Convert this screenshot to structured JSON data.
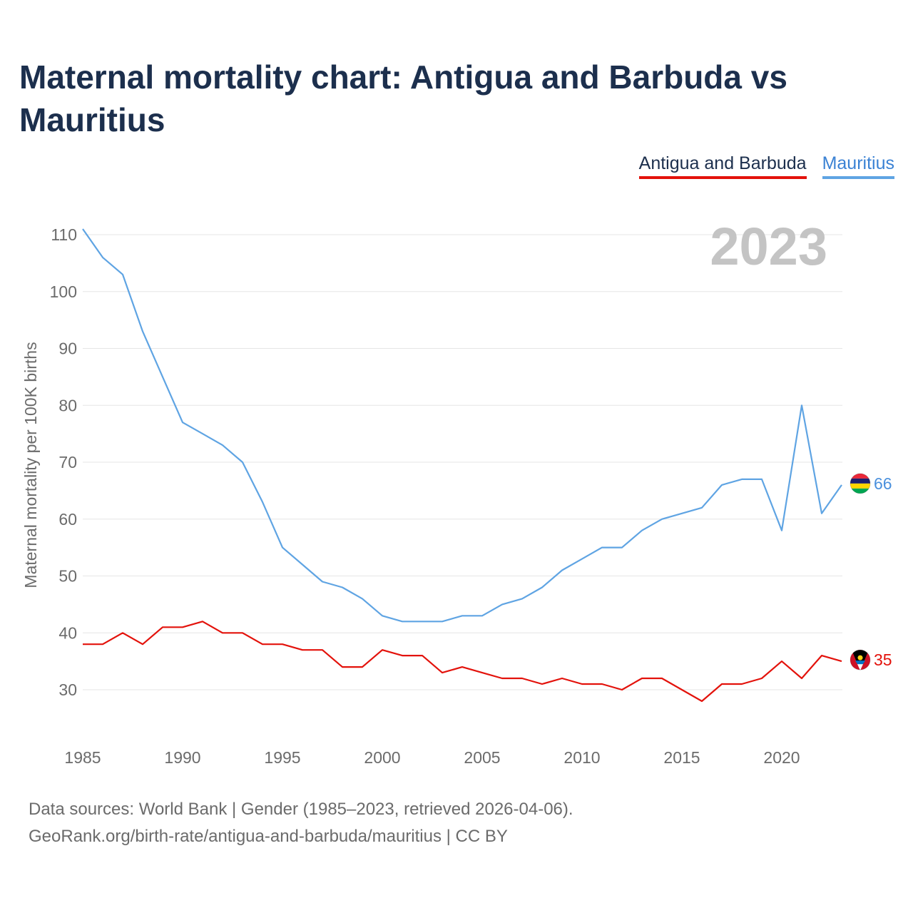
{
  "title": "Maternal mortality chart: Antigua and Barbuda vs Mauritius",
  "year_label": "2023",
  "legend": [
    {
      "name": "Antigua and Barbuda",
      "color": "#e3120b"
    },
    {
      "name": "Mauritius",
      "color": "#5fa4e3"
    }
  ],
  "footer": {
    "line1": "Data sources: World Bank | Gender (1985–2023, retrieved 2026-04-06).",
    "line2": "GeoRank.org/birth-rate/antigua-and-barbuda/mauritius | CC BY"
  },
  "chart_data": {
    "type": "line",
    "title": "Maternal mortality chart: Antigua and Barbuda vs Mauritius",
    "xlabel": "",
    "ylabel": "Maternal mortality per 100K births",
    "xlim": [
      1985,
      2023
    ],
    "ylim": [
      25,
      112
    ],
    "xticks": [
      1985,
      1990,
      1995,
      2000,
      2005,
      2010,
      2015,
      2020
    ],
    "yticks": [
      30,
      40,
      50,
      60,
      70,
      80,
      90,
      100,
      110
    ],
    "grid": true,
    "legend_position": "top-right",
    "x": [
      1985,
      1986,
      1987,
      1988,
      1989,
      1990,
      1991,
      1992,
      1993,
      1994,
      1995,
      1996,
      1997,
      1998,
      1999,
      2000,
      2001,
      2002,
      2003,
      2004,
      2005,
      2006,
      2007,
      2008,
      2009,
      2010,
      2011,
      2012,
      2013,
      2014,
      2015,
      2016,
      2017,
      2018,
      2019,
      2020,
      2021,
      2022,
      2023
    ],
    "series": [
      {
        "name": "Antigua and Barbuda",
        "color": "#e3120b",
        "end_label": "35",
        "flag": "antigua-and-barbuda-flag-icon",
        "values": [
          38,
          38,
          40,
          38,
          41,
          41,
          42,
          40,
          40,
          38,
          38,
          37,
          37,
          34,
          34,
          37,
          36,
          36,
          33,
          34,
          33,
          32,
          32,
          31,
          32,
          31,
          31,
          30,
          32,
          32,
          30,
          28,
          31,
          31,
          32,
          35,
          32,
          36,
          35
        ]
      },
      {
        "name": "Mauritius",
        "color": "#5fa4e3",
        "end_label": "66",
        "flag": "mauritius-flag-icon",
        "values": [
          111,
          106,
          103,
          93,
          85,
          77,
          75,
          73,
          70,
          63,
          55,
          52,
          49,
          48,
          46,
          43,
          42,
          42,
          42,
          43,
          43,
          45,
          46,
          48,
          51,
          53,
          55,
          55,
          58,
          60,
          61,
          62,
          66,
          67,
          67,
          58,
          80,
          61,
          66
        ]
      }
    ]
  }
}
